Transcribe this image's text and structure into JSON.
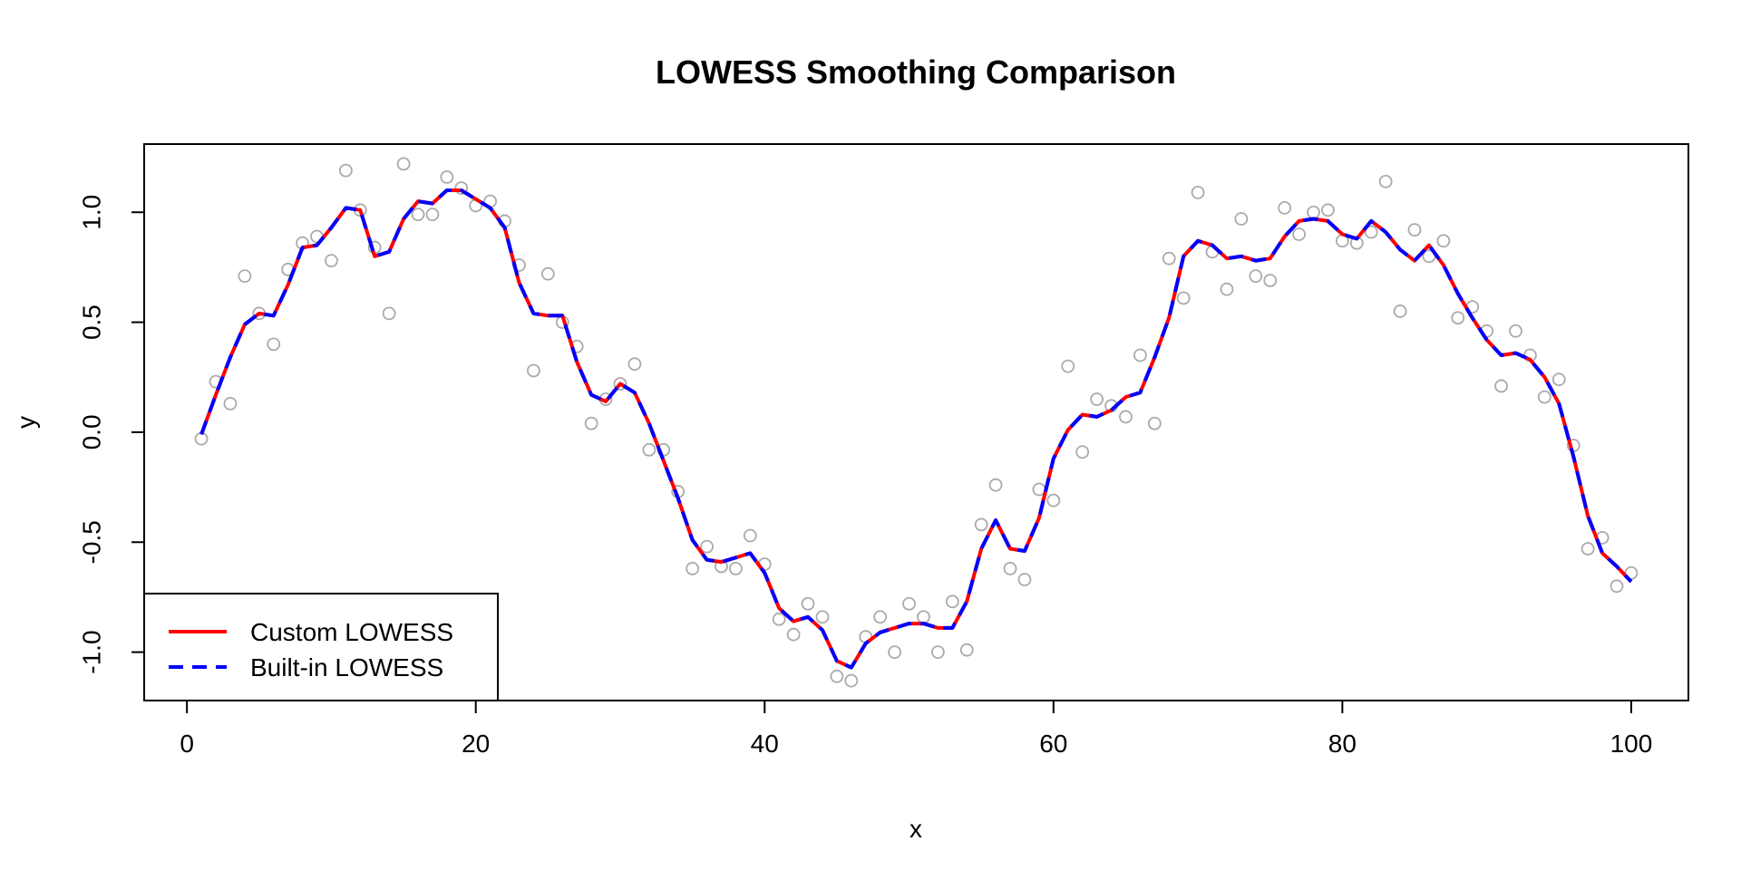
{
  "chart_data": {
    "type": "line",
    "title": "LOWESS Smoothing Comparison",
    "xlabel": "x",
    "ylabel": "y",
    "xlim": [
      -2.96,
      103.96
    ],
    "ylim": [
      -1.22,
      1.31
    ],
    "xticks": [
      0,
      20,
      40,
      60,
      80,
      100
    ],
    "xtick_labels": [
      "0",
      "20",
      "40",
      "60",
      "80",
      "100"
    ],
    "yticks": [
      -1.0,
      -0.5,
      0.0,
      0.5,
      1.0
    ],
    "ytick_labels": [
      "-1.0",
      "-0.5",
      "0.0",
      "0.5",
      "1.0"
    ],
    "grid": false,
    "legend_position": "bottom-left",
    "points": {
      "x": [
        1,
        2,
        3,
        4,
        5,
        6,
        7,
        8,
        9,
        10,
        11,
        12,
        13,
        14,
        15,
        16,
        17,
        18,
        19,
        20,
        21,
        22,
        23,
        24,
        25,
        26,
        27,
        28,
        29,
        30,
        31,
        32,
        33,
        34,
        35,
        36,
        37,
        38,
        39,
        40,
        41,
        42,
        43,
        44,
        45,
        46,
        47,
        48,
        49,
        50,
        51,
        52,
        53,
        54,
        55,
        56,
        57,
        58,
        59,
        60,
        61,
        62,
        63,
        64,
        65,
        66,
        67,
        68,
        69,
        70,
        71,
        72,
        73,
        74,
        75,
        76,
        77,
        78,
        79,
        80,
        81,
        82,
        83,
        84,
        85,
        86,
        87,
        88,
        89,
        90,
        91,
        92,
        93,
        94,
        95,
        96,
        97,
        98,
        99,
        100
      ],
      "y": [
        -0.03,
        0.23,
        0.13,
        0.71,
        0.54,
        0.4,
        0.74,
        0.86,
        0.89,
        0.78,
        1.19,
        1.01,
        0.84,
        0.54,
        1.22,
        0.99,
        0.99,
        1.16,
        1.11,
        1.03,
        1.05,
        0.96,
        0.76,
        0.28,
        0.72,
        0.5,
        0.39,
        0.04,
        0.15,
        0.22,
        0.31,
        -0.08,
        -0.08,
        -0.27,
        -0.62,
        -0.52,
        -0.61,
        -0.62,
        -0.47,
        -0.6,
        -0.85,
        -0.92,
        -0.78,
        -0.84,
        -1.11,
        -1.13,
        -0.93,
        -0.84,
        -1.0,
        -0.78,
        -0.84,
        -1.0,
        -0.77,
        -0.99,
        -0.42,
        -0.24,
        -0.62,
        -0.67,
        -0.26,
        -0.31,
        0.3,
        -0.09,
        0.15,
        0.12,
        0.07,
        0.35,
        0.04,
        0.79,
        0.61,
        1.09,
        0.82,
        0.65,
        0.97,
        0.71,
        0.69,
        1.02,
        0.9,
        1.0,
        1.01,
        0.87,
        0.86,
        0.91,
        1.14,
        0.55,
        0.92,
        0.8,
        0.87,
        0.52,
        0.57,
        0.46,
        0.21,
        0.46,
        0.35,
        0.16,
        0.24,
        -0.06,
        -0.53,
        -0.48,
        -0.7,
        -0.64
      ]
    },
    "series": [
      {
        "name": "Custom LOWESS",
        "color": "#ff0000",
        "style": "solid",
        "x": [
          1,
          2,
          3,
          4,
          5,
          6,
          7,
          8,
          9,
          10,
          11,
          12,
          13,
          14,
          15,
          16,
          17,
          18,
          19,
          20,
          21,
          22,
          23,
          24,
          25,
          26,
          27,
          28,
          29,
          30,
          31,
          32,
          33,
          34,
          35,
          36,
          37,
          38,
          39,
          40,
          41,
          42,
          43,
          44,
          45,
          46,
          47,
          48,
          49,
          50,
          51,
          52,
          53,
          54,
          55,
          56,
          57,
          58,
          59,
          60,
          61,
          62,
          63,
          64,
          65,
          66,
          67,
          68,
          69,
          70,
          71,
          72,
          73,
          74,
          75,
          76,
          77,
          78,
          79,
          80,
          81,
          82,
          83,
          84,
          85,
          86,
          87,
          88,
          89,
          90,
          91,
          92,
          93,
          94,
          95,
          96,
          97,
          98,
          99,
          100
        ],
        "y": [
          -0.01,
          0.17,
          0.34,
          0.49,
          0.54,
          0.53,
          0.67,
          0.84,
          0.85,
          0.93,
          1.02,
          1.01,
          0.8,
          0.82,
          0.97,
          1.05,
          1.04,
          1.1,
          1.1,
          1.06,
          1.02,
          0.93,
          0.68,
          0.54,
          0.53,
          0.53,
          0.32,
          0.17,
          0.14,
          0.22,
          0.18,
          0.04,
          -0.13,
          -0.3,
          -0.49,
          -0.58,
          -0.59,
          -0.57,
          -0.55,
          -0.64,
          -0.8,
          -0.86,
          -0.84,
          -0.9,
          -1.04,
          -1.07,
          -0.96,
          -0.91,
          -0.89,
          -0.87,
          -0.87,
          -0.89,
          -0.89,
          -0.77,
          -0.53,
          -0.4,
          -0.53,
          -0.54,
          -0.39,
          -0.12,
          0.01,
          0.08,
          0.07,
          0.1,
          0.16,
          0.18,
          0.34,
          0.52,
          0.8,
          0.87,
          0.85,
          0.79,
          0.8,
          0.78,
          0.79,
          0.89,
          0.96,
          0.97,
          0.96,
          0.9,
          0.88,
          0.96,
          0.91,
          0.83,
          0.78,
          0.85,
          0.76,
          0.63,
          0.52,
          0.42,
          0.35,
          0.36,
          0.33,
          0.25,
          0.13,
          -0.11,
          -0.38,
          -0.55,
          -0.61,
          -0.68
        ]
      },
      {
        "name": "Built-in LOWESS",
        "color": "#0000ff",
        "style": "dashed",
        "x": [
          1,
          2,
          3,
          4,
          5,
          6,
          7,
          8,
          9,
          10,
          11,
          12,
          13,
          14,
          15,
          16,
          17,
          18,
          19,
          20,
          21,
          22,
          23,
          24,
          25,
          26,
          27,
          28,
          29,
          30,
          31,
          32,
          33,
          34,
          35,
          36,
          37,
          38,
          39,
          40,
          41,
          42,
          43,
          44,
          45,
          46,
          47,
          48,
          49,
          50,
          51,
          52,
          53,
          54,
          55,
          56,
          57,
          58,
          59,
          60,
          61,
          62,
          63,
          64,
          65,
          66,
          67,
          68,
          69,
          70,
          71,
          72,
          73,
          74,
          75,
          76,
          77,
          78,
          79,
          80,
          81,
          82,
          83,
          84,
          85,
          86,
          87,
          88,
          89,
          90,
          91,
          92,
          93,
          94,
          95,
          96,
          97,
          98,
          99,
          100
        ],
        "y": [
          -0.01,
          0.17,
          0.34,
          0.49,
          0.54,
          0.53,
          0.67,
          0.84,
          0.85,
          0.93,
          1.02,
          1.01,
          0.8,
          0.82,
          0.97,
          1.05,
          1.04,
          1.1,
          1.1,
          1.06,
          1.02,
          0.93,
          0.68,
          0.54,
          0.53,
          0.53,
          0.32,
          0.17,
          0.14,
          0.22,
          0.18,
          0.04,
          -0.13,
          -0.3,
          -0.49,
          -0.58,
          -0.59,
          -0.57,
          -0.55,
          -0.64,
          -0.8,
          -0.86,
          -0.84,
          -0.9,
          -1.04,
          -1.07,
          -0.96,
          -0.91,
          -0.89,
          -0.87,
          -0.87,
          -0.89,
          -0.89,
          -0.77,
          -0.53,
          -0.4,
          -0.53,
          -0.54,
          -0.39,
          -0.12,
          0.01,
          0.08,
          0.07,
          0.1,
          0.16,
          0.18,
          0.34,
          0.52,
          0.8,
          0.87,
          0.85,
          0.79,
          0.8,
          0.78,
          0.79,
          0.89,
          0.96,
          0.97,
          0.96,
          0.9,
          0.88,
          0.96,
          0.91,
          0.83,
          0.78,
          0.85,
          0.76,
          0.63,
          0.52,
          0.42,
          0.35,
          0.36,
          0.33,
          0.25,
          0.13,
          -0.11,
          -0.38,
          -0.55,
          -0.61,
          -0.68
        ]
      }
    ],
    "point_color": "#aaaaaa"
  }
}
